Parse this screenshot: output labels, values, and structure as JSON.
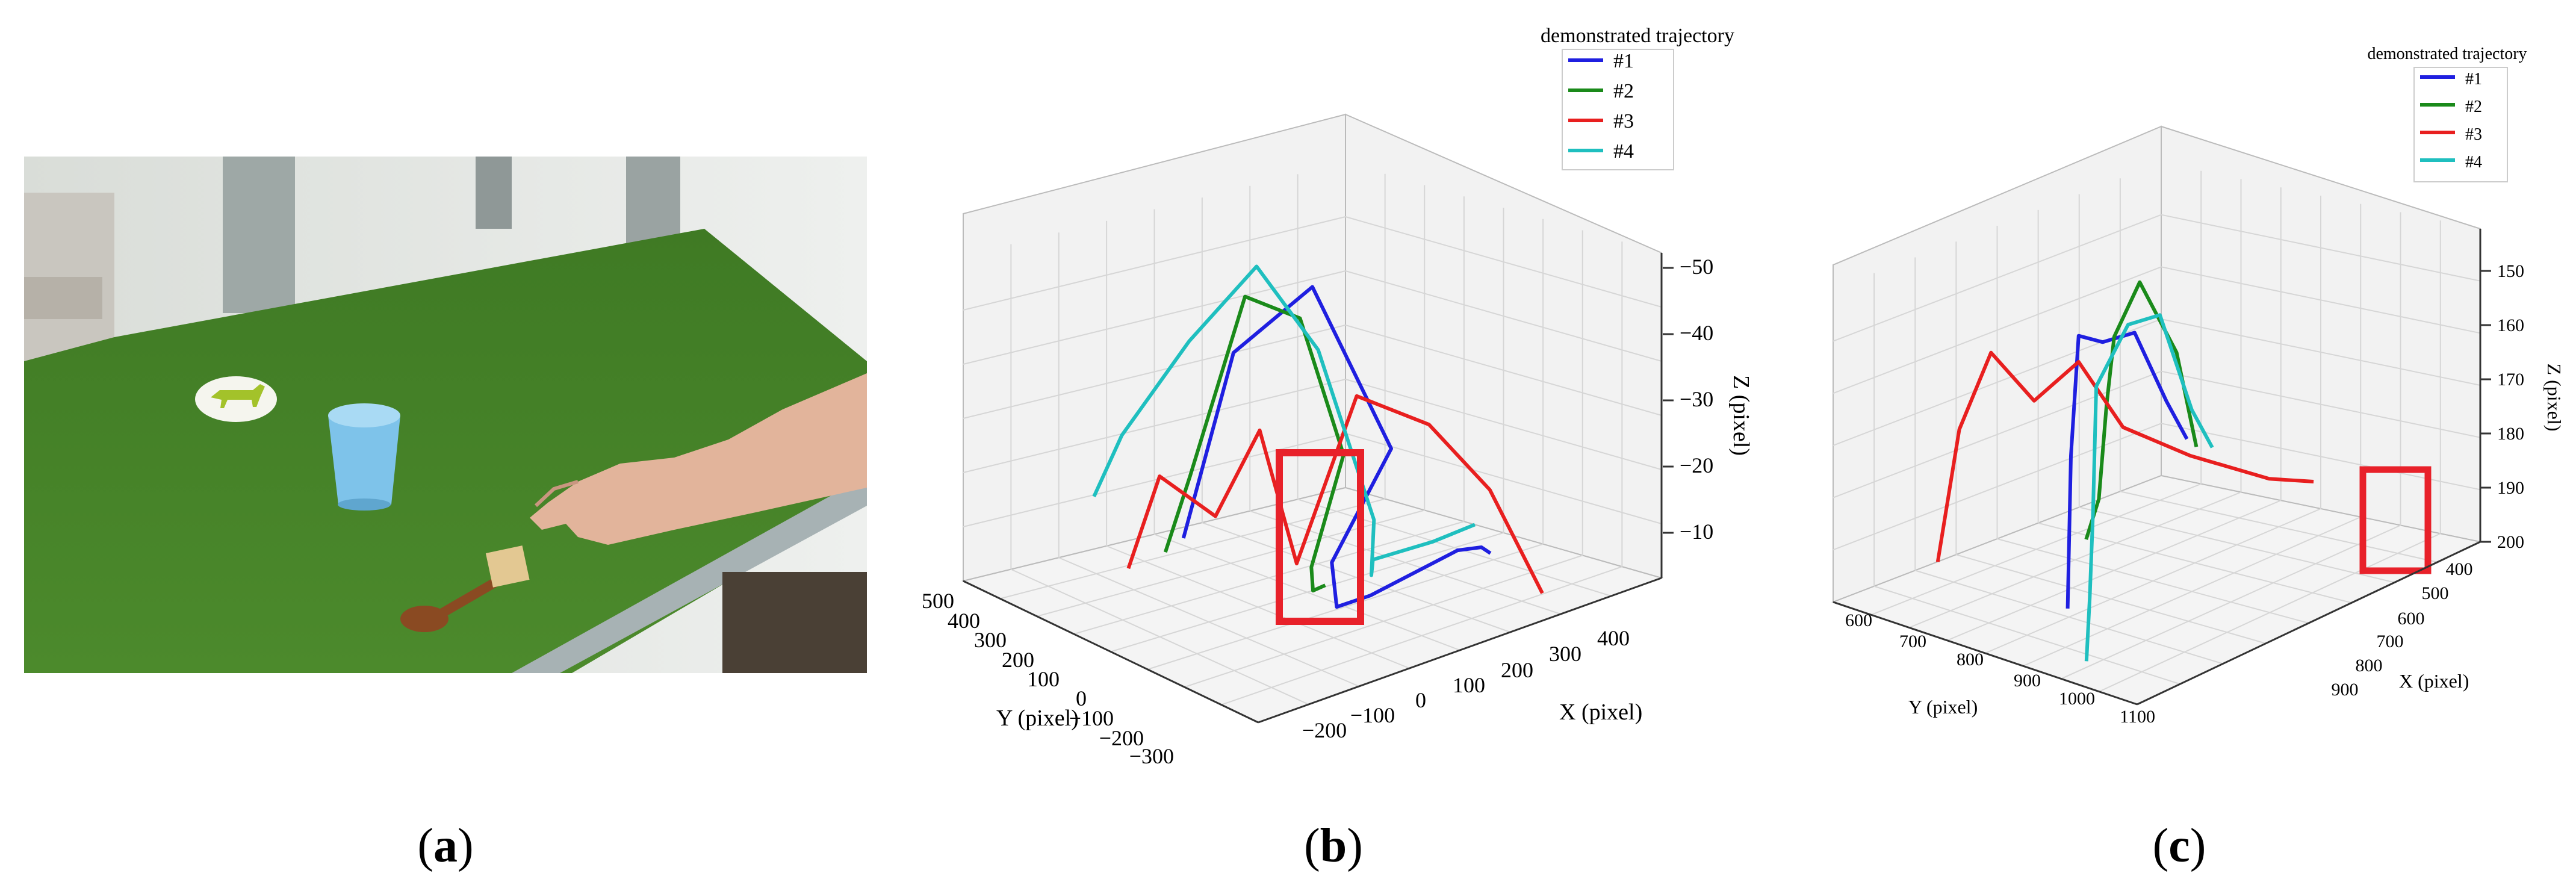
{
  "captions": {
    "a": "a",
    "b": "b",
    "c": "c"
  },
  "photo": {
    "description_icon": "horse-icon",
    "table_color": "#4f8a2b",
    "cup_color": "#7ec3ea"
  },
  "chart_data": [
    {
      "type": "line3d",
      "panel": "b",
      "legend_title": "demonstrated trajectory",
      "xlabel": "X (pixel)",
      "ylabel": "Y (pixel)",
      "zlabel": "Z (pixel)",
      "xticks": [
        "−200",
        "−100",
        "0",
        "100",
        "200",
        "300",
        "400"
      ],
      "yticks": [
        "500",
        "400",
        "300",
        "200",
        "100",
        "0",
        "−100",
        "−200",
        "−300"
      ],
      "zticks": [
        "−50",
        "−40",
        "−30",
        "−20",
        "−10"
      ],
      "grid": true,
      "legend_position": "top-right",
      "highlight_box": {
        "color": "#e8212a"
      },
      "series": [
        {
          "name": "#1",
          "color": "#1f1fe0",
          "x": [
            -10,
            20,
            100,
            180,
            20,
            0,
            30,
            170,
            200,
            210
          ],
          "y": [
            300,
            200,
            100,
            0,
            -100,
            -150,
            -200,
            -220,
            -240,
            -250
          ],
          "z": [
            -10,
            -40,
            -50,
            -25,
            -15,
            -10,
            -12,
            -15,
            -15,
            -14
          ]
        },
        {
          "name": "#2",
          "color": "#1a8a1a",
          "x": [
            -30,
            -10,
            40,
            90,
            120,
            30,
            10,
            20
          ],
          "y": [
            320,
            280,
            200,
            120,
            40,
            -20,
            -60,
            -80
          ],
          "z": [
            -8,
            -20,
            -48,
            -45,
            -25,
            -12,
            -10,
            -11
          ]
        },
        {
          "name": "#3",
          "color": "#e81f1f",
          "x": [
            -60,
            -40,
            0,
            20,
            50,
            120,
            200,
            260,
            300
          ],
          "y": [
            380,
            320,
            220,
            120,
            60,
            0,
            -80,
            -160,
            -250
          ],
          "z": [
            -5,
            -20,
            -15,
            -30,
            -10,
            -35,
            -30,
            -20,
            -5
          ]
        },
        {
          "name": "#4",
          "color": "#1fbfbf",
          "x": [
            -80,
            -60,
            0,
            60,
            110,
            150,
            100,
            80,
            150,
            200
          ],
          "y": [
            450,
            400,
            300,
            200,
            100,
            0,
            -80,
            -120,
            -180,
            -220
          ],
          "z": [
            -15,
            -25,
            -40,
            -52,
            -40,
            -15,
            -10,
            -14,
            -16,
            -18
          ]
        }
      ]
    },
    {
      "type": "line3d",
      "panel": "c",
      "legend_title": "demonstrated trajectory",
      "xlabel": "X (pixel)",
      "ylabel": "Y (pixel)",
      "zlabel": "Z (pixel)",
      "xticks": [
        "900",
        "800",
        "700",
        "600",
        "500",
        "400"
      ],
      "yticks": [
        "600",
        "700",
        "800",
        "900",
        "1000",
        "1100"
      ],
      "zticks": [
        "150",
        "160",
        "170",
        "180",
        "190",
        "200"
      ],
      "grid": true,
      "legend_position": "top-right",
      "highlight_box": {
        "color": "#e8212a"
      },
      "series": [
        {
          "name": "#1",
          "color": "#1f1fe0",
          "x": [
            850,
            800,
            760,
            700,
            600,
            500,
            420
          ],
          "y": [
            900,
            850,
            820,
            800,
            750,
            700,
            650
          ],
          "z": [
            200,
            175,
            155,
            160,
            165,
            185,
            198
          ]
        },
        {
          "name": "#2",
          "color": "#1a8a1a",
          "x": [
            800,
            760,
            720,
            680,
            600,
            500,
            430
          ],
          "y": [
            880,
            860,
            830,
            800,
            760,
            720,
            680
          ],
          "z": [
            190,
            185,
            170,
            160,
            155,
            175,
            198
          ]
        },
        {
          "name": "#3",
          "color": "#e81f1f",
          "x": [
            900,
            880,
            860,
            820,
            760,
            700,
            600,
            480,
            420
          ],
          "y": [
            700,
            720,
            760,
            800,
            820,
            840,
            860,
            880,
            900
          ],
          "z": [
            195,
            170,
            155,
            165,
            160,
            175,
            185,
            195,
            198
          ]
        },
        {
          "name": "#4",
          "color": "#1fbfbf",
          "x": [
            950,
            900,
            850,
            800,
            700,
            600,
            500,
            420
          ],
          "y": [
            1050,
            1000,
            950,
            900,
            850,
            800,
            750,
            700
          ],
          "z": [
            200,
            192,
            180,
            160,
            155,
            160,
            185,
            198
          ]
        }
      ]
    }
  ]
}
